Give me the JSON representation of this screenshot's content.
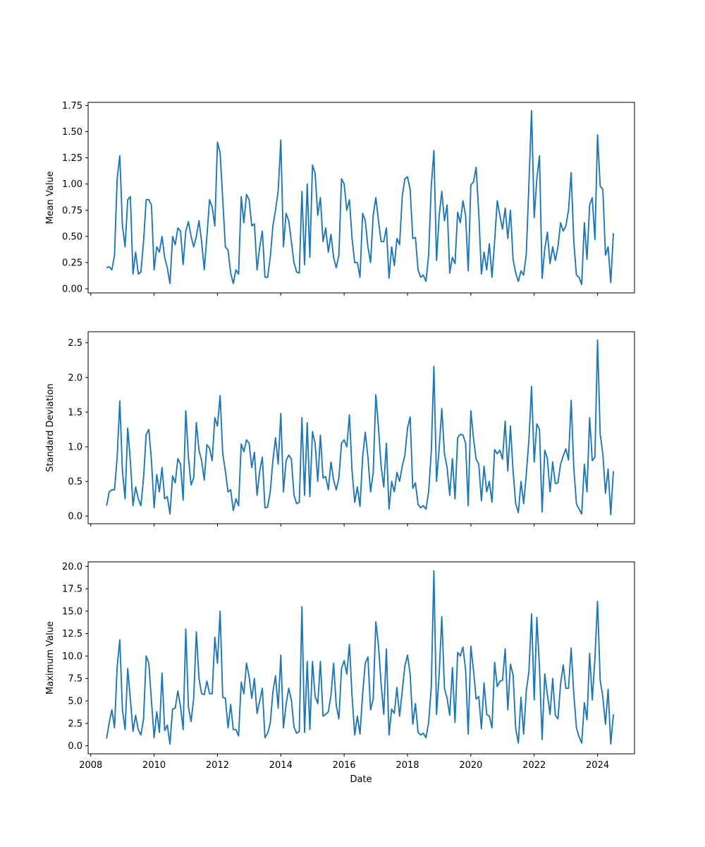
{
  "chart_data": [
    {
      "type": "line",
      "title": "",
      "xlabel": "",
      "ylabel": "Mean Value",
      "color": "#1f77b4",
      "grid": false,
      "ylim": [
        -0.04,
        1.78
      ],
      "yticks": [
        "0.00",
        "0.25",
        "0.50",
        "0.75",
        "1.00",
        "1.25",
        "1.50",
        "1.75"
      ],
      "xticks": [
        "2008",
        "2010",
        "2012",
        "2014",
        "2016",
        "2018",
        "2020",
        "2022",
        "2024"
      ],
      "show_xtick_labels": false,
      "x_range": [
        "2007-12",
        "2025-03"
      ],
      "x_start": "2008-07",
      "interval": "monthly",
      "values": [
        0.2,
        0.21,
        0.18,
        0.32,
        1.05,
        1.27,
        0.6,
        0.4,
        0.85,
        0.88,
        0.14,
        0.35,
        0.14,
        0.16,
        0.45,
        0.85,
        0.85,
        0.8,
        0.18,
        0.4,
        0.35,
        0.5,
        0.3,
        0.2,
        0.05,
        0.5,
        0.42,
        0.58,
        0.55,
        0.23,
        0.55,
        0.64,
        0.5,
        0.4,
        0.5,
        0.65,
        0.45,
        0.18,
        0.5,
        0.85,
        0.78,
        0.6,
        1.4,
        1.3,
        0.85,
        0.4,
        0.37,
        0.15,
        0.05,
        0.18,
        0.14,
        0.88,
        0.63,
        0.9,
        0.85,
        0.6,
        0.62,
        0.18,
        0.4,
        0.55,
        0.11,
        0.11,
        0.3,
        0.6,
        0.75,
        0.93,
        1.42,
        0.4,
        0.72,
        0.65,
        0.45,
        0.25,
        0.16,
        0.15,
        0.93,
        0.23,
        1.0,
        0.3,
        1.18,
        1.1,
        0.7,
        0.87,
        0.45,
        0.58,
        0.35,
        0.52,
        0.3,
        0.2,
        0.32,
        1.05,
        1.0,
        0.75,
        0.85,
        0.48,
        0.25,
        0.25,
        0.11,
        0.72,
        0.65,
        0.4,
        0.25,
        0.7,
        0.87,
        0.65,
        0.45,
        0.45,
        0.58,
        0.1,
        0.4,
        0.22,
        0.48,
        0.42,
        0.88,
        1.05,
        1.07,
        0.95,
        0.48,
        0.49,
        0.18,
        0.11,
        0.13,
        0.07,
        0.32,
        0.98,
        1.32,
        0.27,
        0.7,
        0.93,
        0.65,
        0.8,
        0.15,
        0.3,
        0.24,
        0.73,
        0.63,
        0.84,
        0.7,
        0.17,
        0.99,
        1.02,
        1.16,
        0.72,
        0.14,
        0.35,
        0.18,
        0.43,
        0.11,
        0.45,
        0.84,
        0.7,
        0.57,
        0.77,
        0.48,
        0.75,
        0.28,
        0.15,
        0.07,
        0.17,
        0.13,
        0.33,
        1.0,
        1.7,
        0.68,
        1.05,
        1.27,
        0.1,
        0.38,
        0.54,
        0.24,
        0.4,
        0.27,
        0.4,
        0.63,
        0.55,
        0.6,
        0.75,
        1.11,
        0.45,
        0.13,
        0.11,
        0.04,
        0.63,
        0.28,
        0.8,
        0.87,
        0.47,
        1.47,
        0.98,
        0.95,
        0.32,
        0.4,
        0.06,
        0.53
      ]
    },
    {
      "type": "line",
      "title": "",
      "xlabel": "",
      "ylabel": "Standard Deviation",
      "color": "#1f77b4",
      "grid": false,
      "ylim": [
        -0.11,
        2.66
      ],
      "yticks": [
        "0.0",
        "0.5",
        "1.0",
        "1.5",
        "2.0",
        "2.5"
      ],
      "xticks": [
        "2008",
        "2010",
        "2012",
        "2014",
        "2016",
        "2018",
        "2020",
        "2022",
        "2024"
      ],
      "show_xtick_labels": false,
      "x_range": [
        "2007-12",
        "2025-03"
      ],
      "x_start": "2008-07",
      "interval": "monthly",
      "values": [
        0.15,
        0.35,
        0.38,
        0.38,
        0.85,
        1.66,
        0.65,
        0.25,
        1.27,
        0.8,
        0.15,
        0.42,
        0.25,
        0.15,
        0.55,
        1.18,
        1.25,
        0.8,
        0.12,
        0.6,
        0.35,
        0.7,
        0.25,
        0.28,
        0.03,
        0.58,
        0.48,
        0.83,
        0.75,
        0.23,
        1.52,
        0.85,
        0.45,
        0.55,
        1.35,
        0.95,
        0.8,
        0.52,
        1.03,
        0.98,
        0.8,
        1.42,
        1.3,
        1.74,
        0.9,
        0.65,
        0.35,
        0.38,
        0.08,
        0.25,
        0.15,
        1.04,
        0.93,
        1.1,
        1.05,
        0.7,
        0.92,
        0.3,
        0.65,
        0.85,
        0.12,
        0.13,
        0.35,
        0.8,
        1.13,
        0.75,
        1.48,
        0.35,
        0.8,
        0.88,
        0.82,
        0.3,
        0.18,
        0.2,
        1.42,
        0.3,
        1.35,
        0.28,
        1.22,
        1.05,
        0.5,
        1.17,
        0.55,
        0.57,
        0.38,
        0.78,
        0.52,
        0.38,
        0.55,
        1.05,
        1.1,
        1.0,
        1.46,
        0.65,
        0.2,
        0.42,
        0.14,
        0.85,
        1.21,
        0.85,
        0.35,
        0.62,
        1.75,
        1.28,
        0.72,
        0.42,
        1.05,
        0.1,
        0.5,
        0.35,
        0.63,
        0.5,
        0.72,
        0.88,
        1.27,
        1.43,
        0.4,
        0.48,
        0.17,
        0.12,
        0.15,
        0.1,
        0.35,
        0.92,
        2.16,
        0.5,
        0.98,
        1.55,
        0.9,
        0.7,
        0.3,
        0.83,
        0.25,
        1.13,
        1.18,
        1.17,
        1.05,
        0.15,
        1.52,
        1.12,
        0.82,
        0.75,
        0.22,
        0.72,
        0.35,
        0.5,
        0.2,
        0.96,
        0.9,
        0.95,
        0.82,
        1.37,
        0.65,
        1.3,
        0.65,
        0.18,
        0.05,
        0.5,
        0.18,
        0.6,
        1.1,
        1.87,
        0.78,
        1.33,
        1.25,
        0.06,
        0.95,
        0.83,
        0.35,
        0.78,
        0.47,
        0.48,
        0.75,
        0.87,
        0.97,
        0.81,
        1.67,
        0.7,
        0.18,
        0.1,
        0.03,
        0.75,
        0.35,
        1.42,
        0.8,
        0.85,
        2.54,
        1.18,
        0.9,
        0.33,
        0.68,
        0.02,
        0.65
      ]
    },
    {
      "type": "line",
      "title": "",
      "xlabel": "Date",
      "ylabel": "Maximum Value",
      "color": "#1f77b4",
      "grid": false,
      "ylim": [
        -0.9,
        20.5
      ],
      "yticks": [
        "0.0",
        "2.5",
        "5.0",
        "7.5",
        "10.0",
        "12.5",
        "15.0",
        "17.5",
        "20.0"
      ],
      "xticks": [
        "2008",
        "2010",
        "2012",
        "2014",
        "2016",
        "2018",
        "2020",
        "2022",
        "2024"
      ],
      "show_xtick_labels": true,
      "x_range": [
        "2007-12",
        "2025-03"
      ],
      "x_start": "2008-07",
      "interval": "monthly",
      "values": [
        0.8,
        2.6,
        4.0,
        2.0,
        8.8,
        11.8,
        4.0,
        1.8,
        8.6,
        5.2,
        1.6,
        3.4,
        1.8,
        1.2,
        3.0,
        10.0,
        9.2,
        5.0,
        0.9,
        3.8,
        1.5,
        8.1,
        1.7,
        2.3,
        0.2,
        4.1,
        4.2,
        6.1,
        4.4,
        1.8,
        13.0,
        4.3,
        2.7,
        5.3,
        12.7,
        7.5,
        5.8,
        5.7,
        7.2,
        5.8,
        5.8,
        12.1,
        9.2,
        15.0,
        5.4,
        5.3,
        2.0,
        4.6,
        1.8,
        1.8,
        1.1,
        7.1,
        5.8,
        9.2,
        7.7,
        5.3,
        7.5,
        3.6,
        5.0,
        6.4,
        0.9,
        1.4,
        2.5,
        6.0,
        7.8,
        4.2,
        10.1,
        2.0,
        4.6,
        6.4,
        5.1,
        2.1,
        1.4,
        1.6,
        15.5,
        1.5,
        9.4,
        1.8,
        9.4,
        5.5,
        4.7,
        9.4,
        3.3,
        3.5,
        3.8,
        5.6,
        9.2,
        4.5,
        3.0,
        8.6,
        9.5,
        8.0,
        11.3,
        5.5,
        1.2,
        3.3,
        1.3,
        5.8,
        9.2,
        9.9,
        4.0,
        5.2,
        13.8,
        11.2,
        6.9,
        3.5,
        10.8,
        1.2,
        4.1,
        3.6,
        6.5,
        3.3,
        6.1,
        8.9,
        10.1,
        8.0,
        2.4,
        4.7,
        1.5,
        1.2,
        1.4,
        0.9,
        2.6,
        6.5,
        19.5,
        3.5,
        8.0,
        14.4,
        6.4,
        5.3,
        3.4,
        8.7,
        2.6,
        10.4,
        10.0,
        11.0,
        8.5,
        1.3,
        11.1,
        8.4,
        5.2,
        5.5,
        1.9,
        7.0,
        3.5,
        3.3,
        2.0,
        9.3,
        6.6,
        7.2,
        7.3,
        10.8,
        4.0,
        9.1,
        7.9,
        1.9,
        0.3,
        5.4,
        1.3,
        6.1,
        8.3,
        14.7,
        5.1,
        14.3,
        8.7,
        0.7,
        8.0,
        5.7,
        3.5,
        7.5,
        3.4,
        3.0,
        6.9,
        9.0,
        6.4,
        6.4,
        10.9,
        5.8,
        2.0,
        1.0,
        0.3,
        4.8,
        2.9,
        10.3,
        5.1,
        9.7,
        16.1,
        7.3,
        5.4,
        2.4,
        6.3,
        0.2,
        3.5
      ]
    }
  ]
}
